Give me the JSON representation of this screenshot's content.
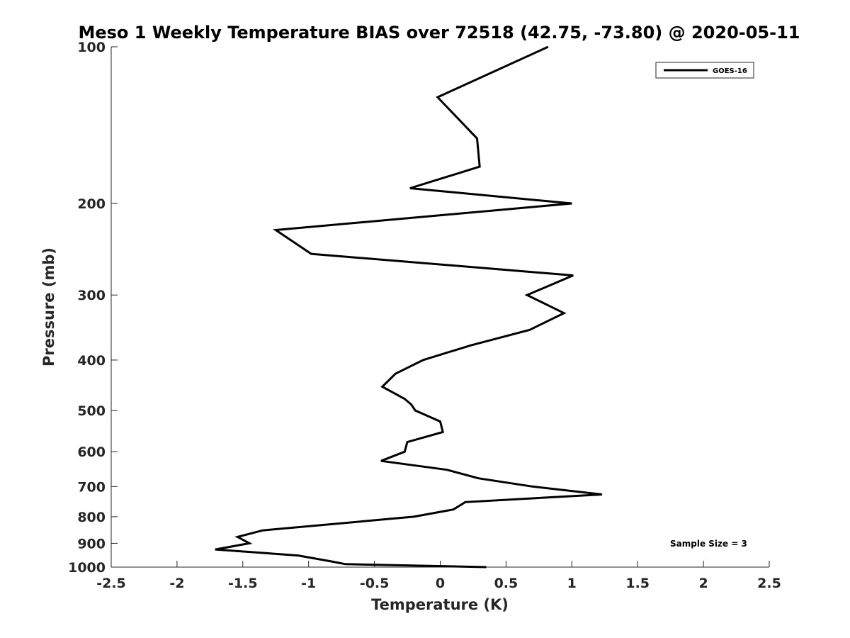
{
  "chart_data": {
    "type": "line",
    "title": "Meso 1 Weekly Temperature BIAS over 72518 (42.75, -73.80) @ 2020-05-11",
    "xlabel": "Temperature (K)",
    "ylabel": "Pressure (mb)",
    "xlim": [
      -2.5,
      2.5
    ],
    "ylim": [
      1000,
      100
    ],
    "yscale": "log",
    "x_ticks": [
      -2.5,
      -2,
      -1.5,
      -1,
      -0.5,
      0,
      0.5,
      1,
      1.5,
      2,
      2.5
    ],
    "x_tick_labels": [
      "-2.5",
      "-2",
      "-1.5",
      "-1",
      "-0.5",
      "0",
      "0.5",
      "1",
      "1.5",
      "2",
      "2.5"
    ],
    "y_ticks": [
      100,
      200,
      300,
      400,
      500,
      600,
      700,
      800,
      900,
      1000
    ],
    "y_tick_labels": [
      "100",
      "200",
      "300",
      "400",
      "500",
      "600",
      "700",
      "800",
      "900",
      "1000"
    ],
    "grid": false,
    "legend_position": "top-right",
    "series": [
      {
        "name": "GOES-16",
        "color": "#000000",
        "points": [
          [
            0.82,
            100
          ],
          [
            -0.02,
            125
          ],
          [
            0.28,
            150
          ],
          [
            0.3,
            170
          ],
          [
            -0.23,
            187
          ],
          [
            1.0,
            200
          ],
          [
            -1.25,
            225
          ],
          [
            -0.98,
            250
          ],
          [
            1.01,
            275
          ],
          [
            0.66,
            300
          ],
          [
            0.94,
            325
          ],
          [
            0.68,
            350
          ],
          [
            0.23,
            375
          ],
          [
            -0.13,
            400
          ],
          [
            -0.34,
            425
          ],
          [
            -0.44,
            450
          ],
          [
            -0.27,
            475
          ],
          [
            -0.22,
            487
          ],
          [
            -0.19,
            500
          ],
          [
            0.0,
            525
          ],
          [
            0.02,
            550
          ],
          [
            -0.25,
            575
          ],
          [
            -0.27,
            600
          ],
          [
            -0.45,
            625
          ],
          [
            0.05,
            650
          ],
          [
            0.29,
            675
          ],
          [
            0.7,
            700
          ],
          [
            1.23,
            725
          ],
          [
            0.19,
            750
          ],
          [
            0.1,
            775
          ],
          [
            -0.2,
            800
          ],
          [
            -1.35,
            850
          ],
          [
            -1.54,
            875
          ],
          [
            -1.45,
            900
          ],
          [
            -1.71,
            925
          ],
          [
            -1.08,
            950
          ],
          [
            -0.83,
            975
          ],
          [
            -0.72,
            987
          ],
          [
            0.35,
            1000
          ]
        ]
      }
    ],
    "annotation": "Sample Size = 3"
  }
}
